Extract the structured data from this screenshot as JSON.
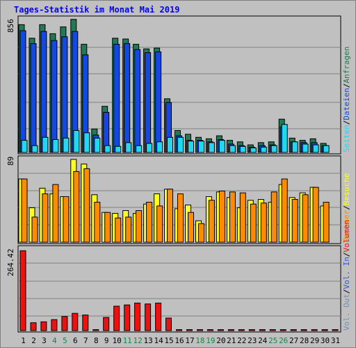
{
  "title": "Tages-Statistik im Monat Mai 2019",
  "colors": {
    "anfragen": "#1f7a55",
    "dateien": "#1448e0",
    "seiten": "#22d8f0",
    "besuche": "#ffff20",
    "rechner": "#ff8c00",
    "vol_out": "#7090b0",
    "vol_in": "#3355dd",
    "volumen": "#ee1111",
    "weekend_label": "#118844",
    "panel_bg": "#c0c0c0",
    "grid": "#808080"
  },
  "chart_data": [
    {
      "type": "bar",
      "name": "hits-panel",
      "y_max_label": "856",
      "ylim": [
        0,
        856
      ],
      "categories": [
        "1",
        "2",
        "3",
        "4",
        "5",
        "6",
        "7",
        "8",
        "9",
        "10",
        "11",
        "12",
        "13",
        "14",
        "15",
        "16",
        "17",
        "18",
        "19",
        "20",
        "21",
        "22",
        "23",
        "24",
        "25",
        "26",
        "27",
        "28",
        "29",
        "30",
        "31"
      ],
      "legend": [
        {
          "label": "Anfragen",
          "color": "#1f7a55"
        },
        {
          "label": "Dateien",
          "color": "#1448e0"
        },
        {
          "label": "Seiten",
          "color": "#22d8f0"
        }
      ],
      "series": [
        {
          "name": "Anfragen",
          "values": [
            845,
            755,
            845,
            785,
            830,
            880,
            715,
            155,
            305,
            755,
            750,
            715,
            685,
            690,
            355,
            145,
            120,
            100,
            90,
            110,
            80,
            70,
            50,
            65,
            70,
            220,
            95,
            80,
            90,
            60,
            0
          ]
        },
        {
          "name": "Dateien",
          "values": [
            805,
            720,
            800,
            740,
            765,
            800,
            645,
            115,
            265,
            715,
            720,
            680,
            660,
            665,
            330,
            110,
            80,
            80,
            70,
            85,
            55,
            45,
            35,
            45,
            50,
            170,
            70,
            65,
            65,
            45,
            0
          ]
        },
        {
          "name": "Seiten",
          "values": [
            80,
            45,
            100,
            85,
            95,
            145,
            130,
            95,
            45,
            40,
            65,
            45,
            60,
            70,
            100,
            100,
            75,
            75,
            65,
            80,
            45,
            40,
            30,
            35,
            45,
            185,
            70,
            55,
            50,
            45,
            0
          ]
        }
      ]
    },
    {
      "type": "bar",
      "name": "visits-panel",
      "y_max_label": "89",
      "ylim": [
        0,
        89
      ],
      "categories": [
        "1",
        "2",
        "3",
        "4",
        "5",
        "6",
        "7",
        "8",
        "9",
        "10",
        "11",
        "12",
        "13",
        "14",
        "15",
        "16",
        "17",
        "18",
        "19",
        "20",
        "21",
        "22",
        "23",
        "24",
        "25",
        "26",
        "27",
        "28",
        "29",
        "30",
        "31"
      ],
      "legend": [
        {
          "label": "Besuche",
          "color": "#ffff20"
        },
        {
          "label": "Rechner",
          "color": "#ff8c00"
        }
      ],
      "series": [
        {
          "name": "Besuche",
          "values": [
            68,
            37,
            58,
            52,
            49,
            89,
            84,
            51,
            32,
            31,
            34,
            31,
            41,
            52,
            57,
            36,
            40,
            23,
            49,
            54,
            48,
            37,
            45,
            46,
            43,
            62,
            48,
            53,
            59,
            39,
            0
          ]
        },
        {
          "name": "Rechner",
          "values": [
            68,
            27,
            52,
            62,
            49,
            76,
            79,
            43,
            32,
            26,
            27,
            34,
            43,
            39,
            57,
            52,
            32,
            20,
            45,
            55,
            54,
            53,
            41,
            42,
            54,
            68,
            46,
            51,
            59,
            43,
            0
          ]
        }
      ]
    },
    {
      "type": "bar",
      "name": "volume-panel",
      "y_max_label": "264.42",
      "ylim": [
        0,
        264.42
      ],
      "categories": [
        "1",
        "2",
        "3",
        "4",
        "5",
        "6",
        "7",
        "8",
        "9",
        "10",
        "11",
        "12",
        "13",
        "14",
        "15",
        "16",
        "17",
        "18",
        "19",
        "20",
        "21",
        "22",
        "23",
        "24",
        "25",
        "26",
        "27",
        "28",
        "29",
        "30",
        "31"
      ],
      "legend": [
        {
          "label": "Volumen",
          "color": "#ee1111"
        },
        {
          "label": "Vol. In",
          "color": "#3355dd"
        },
        {
          "label": "Vol. Out",
          "color": "#7090b0"
        }
      ],
      "series": [
        {
          "name": "Volumen",
          "values": [
            255,
            25,
            28,
            35,
            45,
            55,
            50,
            3,
            42,
            78,
            82,
            88,
            85,
            88,
            40,
            3,
            3,
            3,
            3,
            3,
            3,
            3,
            3,
            3,
            3,
            3,
            3,
            3,
            3,
            3,
            3
          ]
        }
      ]
    }
  ],
  "x_labels": [
    {
      "label": "1",
      "weekend": false
    },
    {
      "label": "2",
      "weekend": false
    },
    {
      "label": "3",
      "weekend": false
    },
    {
      "label": "4",
      "weekend": true
    },
    {
      "label": "5",
      "weekend": true
    },
    {
      "label": "6",
      "weekend": false
    },
    {
      "label": "7",
      "weekend": false
    },
    {
      "label": "8",
      "weekend": false
    },
    {
      "label": "9",
      "weekend": false
    },
    {
      "label": "10",
      "weekend": false
    },
    {
      "label": "11",
      "weekend": true
    },
    {
      "label": "12",
      "weekend": true
    },
    {
      "label": "13",
      "weekend": false
    },
    {
      "label": "14",
      "weekend": false
    },
    {
      "label": "15",
      "weekend": false
    },
    {
      "label": "16",
      "weekend": false
    },
    {
      "label": "17",
      "weekend": false
    },
    {
      "label": "18",
      "weekend": true
    },
    {
      "label": "19",
      "weekend": true
    },
    {
      "label": "20",
      "weekend": false
    },
    {
      "label": "21",
      "weekend": false
    },
    {
      "label": "22",
      "weekend": false
    },
    {
      "label": "23",
      "weekend": false
    },
    {
      "label": "24",
      "weekend": false
    },
    {
      "label": "25",
      "weekend": true
    },
    {
      "label": "26",
      "weekend": true
    },
    {
      "label": "27",
      "weekend": false
    },
    {
      "label": "28",
      "weekend": false
    },
    {
      "label": "29",
      "weekend": false
    },
    {
      "label": "30",
      "weekend": false
    },
    {
      "label": "31",
      "weekend": false
    }
  ]
}
